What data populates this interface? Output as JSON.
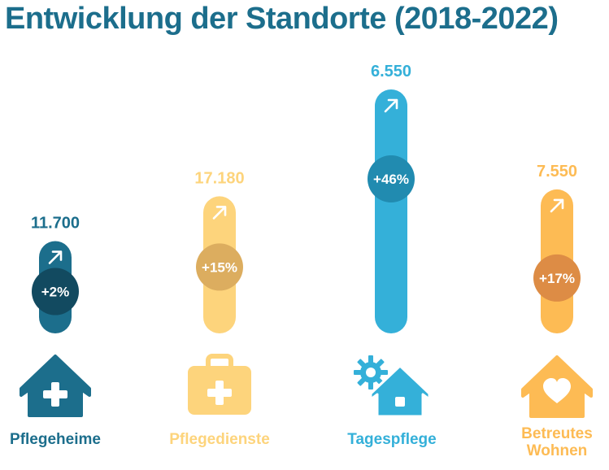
{
  "title": "Entwicklung der Standorte (2018-2022)",
  "chart_data": {
    "type": "bar",
    "title": "Entwicklung der Standorte (2018-2022)",
    "categories": [
      "Pflegeheime",
      "Pflegedienste",
      "Tagespflege",
      "Betreutes Wohnen"
    ],
    "values": [
      11700,
      17180,
      6550,
      7550
    ],
    "value_labels": [
      "11.700",
      "17.180",
      "6.550",
      "7.550"
    ],
    "changes": [
      "+2%",
      "+15%",
      "+46%",
      "+17%"
    ],
    "change_values": [
      2,
      15,
      46,
      17
    ]
  },
  "items": [
    {
      "label": "Pflegeheime",
      "value": "11.700",
      "change": "+2%",
      "icon": "house-plus-icon",
      "color": "#1c6e8c",
      "badge": "#124a60"
    },
    {
      "label": "Pflegedienste",
      "value": "17.180",
      "change": "+15%",
      "icon": "medical-bag-icon",
      "color": "#fdd47c",
      "badge": "#dcad5f"
    },
    {
      "label": "Tagespflege",
      "value": "6.550",
      "change": "+46%",
      "icon": "house-sun-icon",
      "color": "#34b0d9",
      "badge": "#218bb0"
    },
    {
      "label": "Betreutes Wohnen",
      "value": "7.550",
      "change": "+17%",
      "icon": "house-heart-icon",
      "color": "#fdbb54",
      "badge": "#dd8c45"
    }
  ]
}
